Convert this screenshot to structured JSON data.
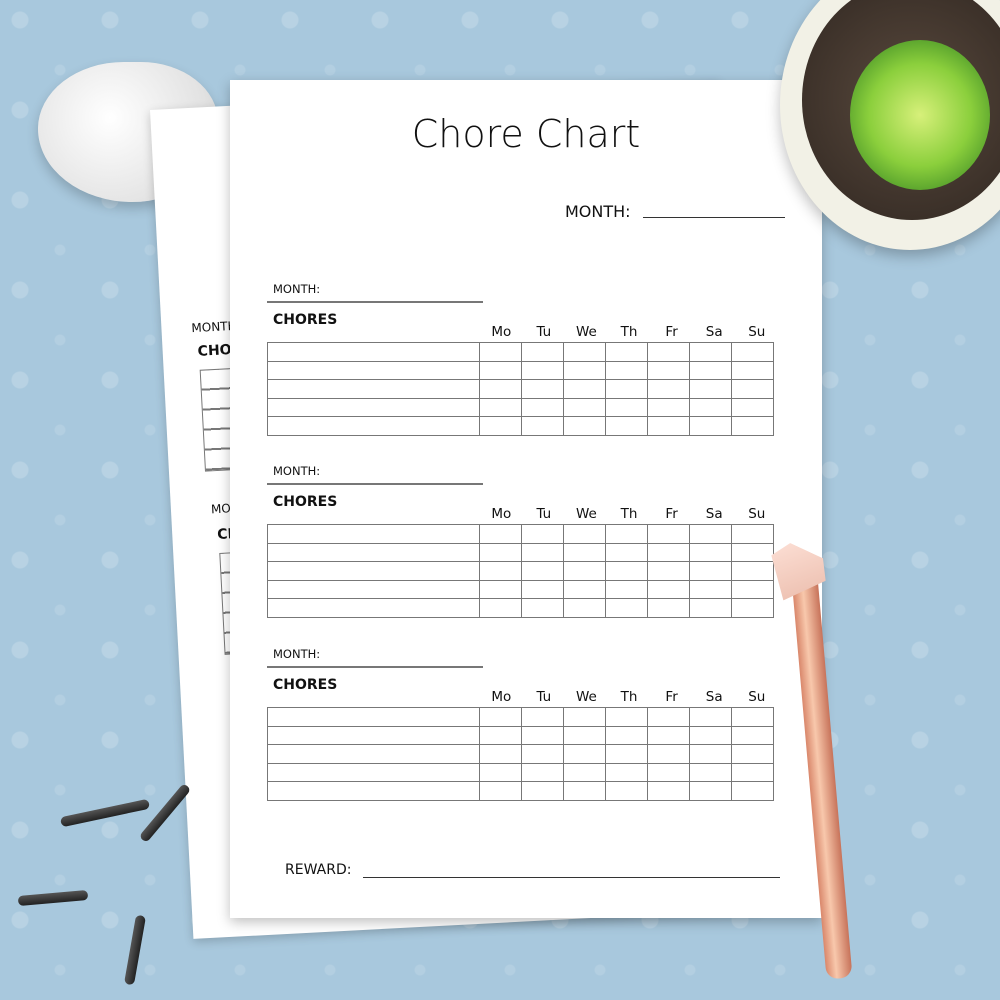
{
  "title": "Chore Chart",
  "month_label": "MONTH:",
  "chores_label": "CHORES",
  "back_sheet": {
    "month_label": "MONTH",
    "chores_label": "CHORE"
  },
  "days": [
    "Mo",
    "Tu",
    "We",
    "Th",
    "Fr",
    "Sa",
    "Su"
  ],
  "sections_count": 3,
  "rows_per_section": 5,
  "reward_label": "REWARD:",
  "colors": {
    "background": "#a8c8dd",
    "grid_line": "#777777",
    "paper": "#ffffff"
  }
}
